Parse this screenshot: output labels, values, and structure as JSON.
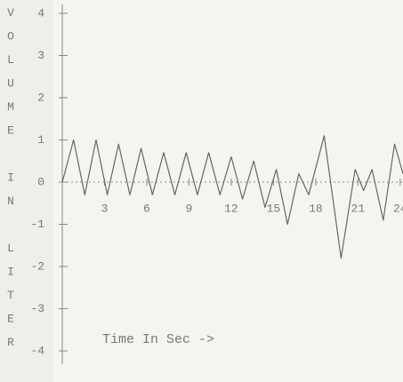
{
  "chart_data": {
    "type": "line",
    "ylabel": "VOLUME IN LITER",
    "xlabel": "Time In Sec ->",
    "x": [
      0,
      0.8,
      1.6,
      2.4,
      3.2,
      4.0,
      4.8,
      5.6,
      6.4,
      7.2,
      8.0,
      8.8,
      9.6,
      10.4,
      11.2,
      12.0,
      12.8,
      13.6,
      14.4,
      15.2,
      16.0,
      16.8,
      17.5,
      18.6,
      19.8,
      20.8,
      21.4,
      22.0,
      22.8,
      23.6,
      24.2
    ],
    "values": [
      0,
      1.0,
      -0.3,
      1.0,
      -0.3,
      0.9,
      -0.3,
      0.8,
      -0.3,
      0.7,
      -0.3,
      0.7,
      -0.3,
      0.7,
      -0.3,
      0.6,
      -0.4,
      0.5,
      -0.6,
      0.3,
      -1.0,
      0.2,
      -0.3,
      1.1,
      -1.8,
      0.3,
      -0.2,
      0.3,
      -0.9,
      0.9,
      0.2
    ],
    "color": "#666666",
    "xlim": [
      0,
      24.2
    ],
    "ylim": [
      -4,
      4
    ],
    "xticks": [
      3,
      6,
      9,
      12,
      15,
      18,
      21,
      24
    ],
    "yticks": [
      -4,
      -3,
      -2,
      -1,
      0,
      1,
      2,
      3,
      4
    ]
  }
}
